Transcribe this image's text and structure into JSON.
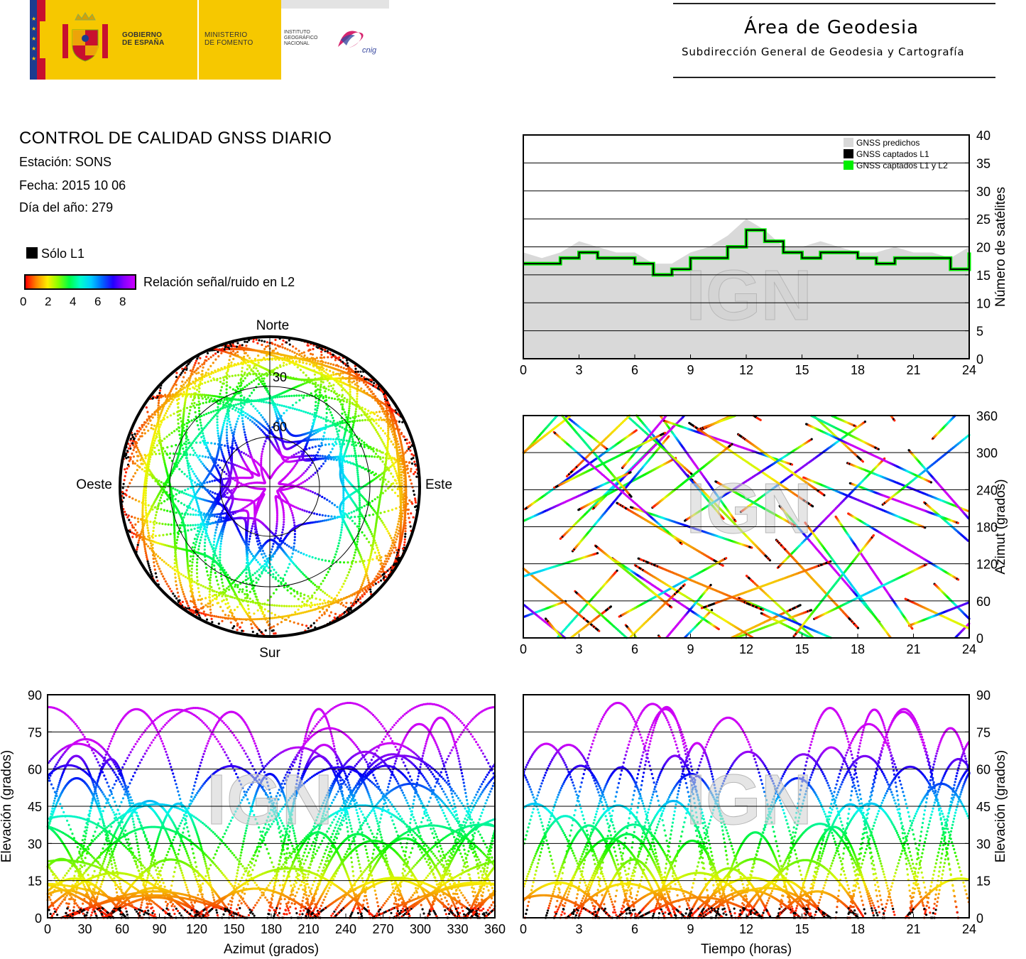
{
  "header": {
    "logo": {
      "gov_line1": "GOBIERNO",
      "gov_line2": "DE ESPAÑA",
      "min_line1": "MINISTERIO",
      "min_line2": "DE FOMENTO",
      "inst_line1": "INSTITUTO",
      "inst_line2": "GEOGRÁFICO",
      "inst_line3": "NACIONAL",
      "cnig": "cnig"
    },
    "area_title": "Área de Geodesia",
    "area_subtitle": "Subdirección General de Geodesia y Cartografía"
  },
  "info": {
    "title": "CONTROL DE CALIDAD GNSS DIARIO",
    "station": "Estación: SONS",
    "date": "Fecha: 2015 10 06",
    "doy": "Día del año: 279"
  },
  "legend": {
    "l1_only": "Sólo L1",
    "snr_label": "Relación señal/ruido en L2",
    "snr_ticks": [
      "0",
      "2",
      "4",
      "6",
      "8"
    ],
    "colors": {
      "l1_only": "#000000",
      "snr_low": "#ff0000",
      "snr_high": "#cc00ff"
    }
  },
  "watermark": "IGN",
  "chart_data": [
    {
      "id": "skyplot",
      "type": "scatter",
      "projection": "polar",
      "directions": {
        "north": "Norte",
        "south": "Sur",
        "east": "Este",
        "west": "Oeste"
      },
      "rings": [
        "30",
        "60"
      ],
      "color_encoding": "SNR L2 (0-8)"
    },
    {
      "id": "satellites",
      "type": "area",
      "ylabel": "Número de satélites",
      "xlim": [
        0,
        24
      ],
      "ylim": [
        0,
        40
      ],
      "x_ticks": [
        "0",
        "3",
        "6",
        "9",
        "12",
        "15",
        "18",
        "21",
        "24"
      ],
      "y_ticks": [
        "0",
        "5",
        "10",
        "15",
        "20",
        "25",
        "30",
        "35",
        "40"
      ],
      "legend_position": "top-right",
      "series": [
        {
          "name": "GNSS predichos",
          "color": "#d9d9d9",
          "x": [
            0,
            1,
            2,
            3,
            4,
            5,
            6,
            7,
            8,
            9,
            10,
            11,
            12,
            13,
            14,
            15,
            16,
            17,
            18,
            19,
            20,
            21,
            22,
            23,
            24
          ],
          "values": [
            19,
            18,
            19,
            21,
            20,
            19,
            19,
            17,
            17,
            19,
            20,
            22,
            25,
            23,
            20,
            20,
            21,
            20,
            19,
            19,
            20,
            19,
            19,
            18,
            20
          ]
        },
        {
          "name": "GNSS captados L1",
          "color": "#000000",
          "x": [
            0,
            1,
            2,
            3,
            4,
            5,
            6,
            7,
            8,
            9,
            10,
            11,
            12,
            13,
            14,
            15,
            16,
            17,
            18,
            19,
            20,
            21,
            22,
            23,
            24
          ],
          "values": [
            17,
            17,
            18,
            19,
            18,
            18,
            17,
            15,
            16,
            18,
            18,
            20,
            23,
            21,
            19,
            18,
            19,
            19,
            18,
            17,
            18,
            18,
            18,
            16,
            19
          ]
        },
        {
          "name": "GNSS captados L1 y L2",
          "color": "#00ee00",
          "x": [
            0,
            1,
            2,
            3,
            4,
            5,
            6,
            7,
            8,
            9,
            10,
            11,
            12,
            13,
            14,
            15,
            16,
            17,
            18,
            19,
            20,
            21,
            22,
            23,
            24
          ],
          "values": [
            17,
            17,
            18,
            19,
            18,
            18,
            17,
            15,
            16,
            18,
            18,
            20,
            23,
            21,
            19,
            18,
            19,
            19,
            18,
            17,
            18,
            18,
            18,
            16,
            19
          ]
        }
      ]
    },
    {
      "id": "azimuth-time",
      "type": "scatter",
      "ylabel": "Azimut (grados)",
      "xlim": [
        0,
        24
      ],
      "ylim": [
        0,
        360
      ],
      "x_ticks": [
        "0",
        "3",
        "6",
        "9",
        "12",
        "15",
        "18",
        "21",
        "24"
      ],
      "y_ticks": [
        "0",
        "60",
        "120",
        "180",
        "240",
        "300",
        "360"
      ]
    },
    {
      "id": "elevation-azimuth",
      "type": "scatter",
      "xlabel": "Azimut (grados)",
      "ylabel": "Elevación (grados)",
      "xlim": [
        0,
        360
      ],
      "ylim": [
        0,
        90
      ],
      "x_ticks": [
        "0",
        "30",
        "60",
        "90",
        "120",
        "150",
        "180",
        "210",
        "240",
        "270",
        "300",
        "330",
        "360"
      ],
      "y_ticks": [
        "0",
        "15",
        "30",
        "45",
        "60",
        "75",
        "90"
      ]
    },
    {
      "id": "elevation-time",
      "type": "scatter",
      "xlabel": "Tiempo (horas)",
      "ylabel": "Elevación (grados)",
      "xlim": [
        0,
        24
      ],
      "ylim": [
        0,
        90
      ],
      "x_ticks": [
        "0",
        "3",
        "6",
        "9",
        "12",
        "15",
        "18",
        "21",
        "24"
      ],
      "y_ticks": [
        "0",
        "15",
        "30",
        "45",
        "60",
        "75",
        "90"
      ]
    }
  ]
}
